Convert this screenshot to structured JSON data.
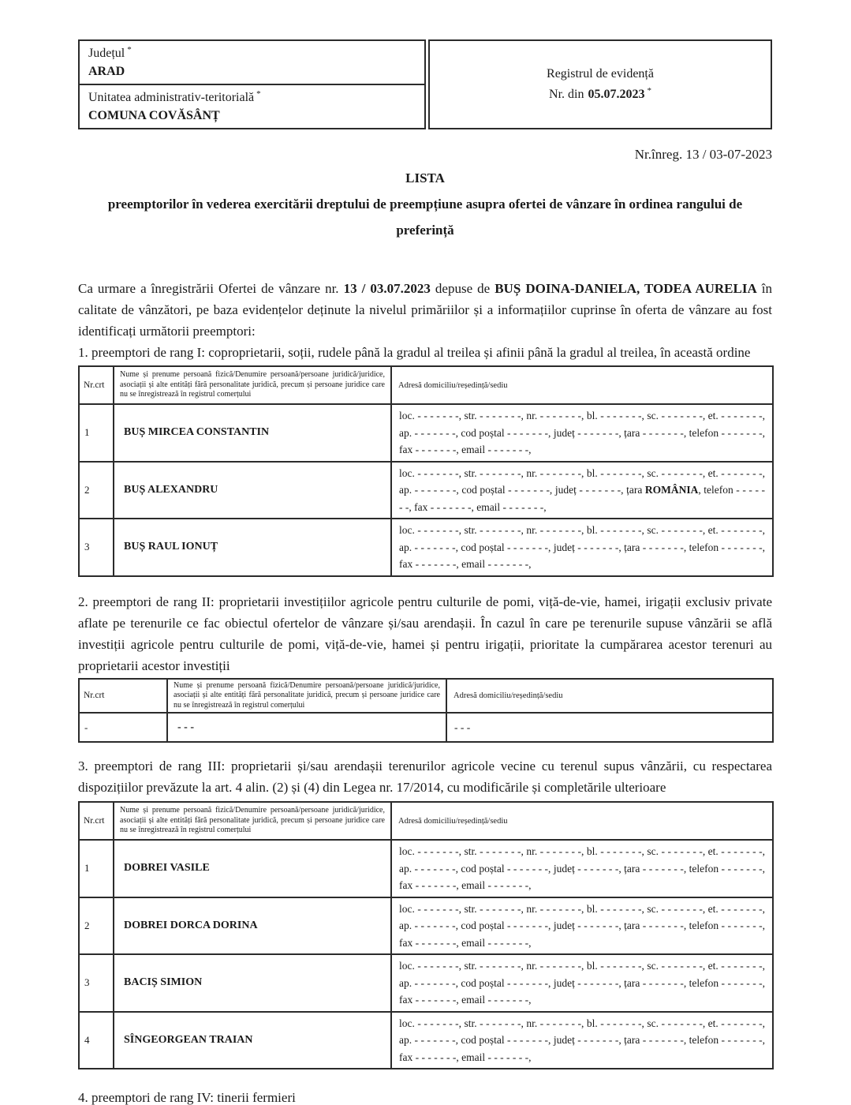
{
  "header": {
    "judet_label": "Județul",
    "judet_value": "ARAD",
    "uat_label": "Unitatea administrativ-teritorială",
    "uat_value": "COMUNA COVĂSÂNȚ",
    "asterisk": "*",
    "registry_title": "Registrul de evidență",
    "registry_nr_label": "Nr. din",
    "registry_nr_value": "05.07.2023"
  },
  "registration_line": "Nr.înreg. 13 / 03-07-2023",
  "title": {
    "main": "LISTA",
    "subtitle": "preemptorilor în vederea exercitării dreptului de preempțiune asupra ofertei de vânzare în ordinea rangului de preferință"
  },
  "intro_paragraph": [
    {
      "t": "Ca urmare a înregistrării Ofertei de vânzare nr. "
    },
    {
      "t": "13 / 03.07.2023",
      "b": true
    },
    {
      "t": " depuse de "
    },
    {
      "t": "BUȘ DOINA-DANIELA, TODEA AURELIA",
      "b": true
    },
    {
      "t": " în calitate de vânzători, pe baza evidențelor deținute la nivelul primăriilor și a informațiilor cuprinse în oferta de vânzare au fost identificați următorii preemptori:"
    }
  ],
  "tables": [
    {
      "intro": "1. preemptori de rang I: coproprietarii, soții, rudele până la gradul al treilea și afinii până la gradul al treilea, în această ordine",
      "columns": [
        "Nr.crt",
        "Nume și prenume persoană fizică/Denumire persoană/persoane juridică/juridice, asociații și alte entități fără personalitate juridică, precum și persoane juridice care nu se înregistrează în registrul comerțului",
        "Adresă domiciliu/reședință/sediu"
      ],
      "rows": [
        {
          "nr": "1",
          "name": "BUȘ MIRCEA CONSTANTIN",
          "address": [
            {
              "t": "loc. - - - - - - -, str. - - - - - - -, nr. - - - - - - -, bl. - - - - - - -, sc. - - - - - - -, et. - - - - - - -, ap. - - - - - - -, cod poștal - - - - - - -, județ - - - - - - -, țara - - - - - - -, telefon - - - - - - -, fax - - - - - - -, email - - - - - - -,"
            }
          ]
        },
        {
          "nr": "2",
          "name": "BUȘ ALEXANDRU",
          "address": [
            {
              "t": "loc. - - - - - - -, str. - - - - - - -, nr. - - - - - - -, bl. - - - - - - -, sc. - - - - - - -, et. - - - - - - -, ap. - - - - - - -, cod poștal - - - - - - -, județ - - - - - - -, țara "
            },
            {
              "t": "ROMÂNIA",
              "b": true
            },
            {
              "t": ", telefon - - - - - - -, fax - - - - - - -, email - - - - - - -,"
            }
          ]
        },
        {
          "nr": "3",
          "name": "BUȘ RAUL IONUȚ",
          "address": [
            {
              "t": "loc. - - - - - - -, str. - - - - - - -, nr. - - - - - - -, bl. - - - - - - -, sc. - - - - - - -, et. - - - - - - -, ap. - - - - - - -, cod poștal - - - - - - -, județ - - - - - - -, țara - - - - - - -, telefon - - - - - - -, fax - - - - - - -, email - - - - - - -,"
            }
          ]
        }
      ]
    },
    {
      "intro": "2. preemptori de rang II: proprietarii investițiilor agricole pentru culturile de pomi, viță-de-vie, hamei, irigații exclusiv private aflate pe terenurile ce fac obiectul ofertelor de vânzare și/sau arendașii. În cazul în care pe terenurile supuse vânzării se află investiții agricole pentru culturile de pomi, viță-de-vie, hamei și pentru irigații, prioritate la cumpărarea acestor terenuri au proprietarii acestor investiții",
      "columns": [
        "Nr.crt",
        "Nume și prenume persoană fizică/Denumire persoană/persoane juridică/juridice, asociații și alte entități fără personalitate juridică, precum și persoane juridice care nu se înregistrează în registrul comerțului",
        "Adresă domiciliu/reședință/sediu"
      ],
      "rows": [
        {
          "nr": "-",
          "name": "- - -",
          "address": [
            {
              "t": "- - -"
            }
          ]
        }
      ]
    },
    {
      "intro": "3. preemptori de rang III: proprietarii și/sau arendașii terenurilor agricole vecine cu terenul supus vânzării, cu respectarea dispozițiilor prevăzute la art. 4 alin. (2) și (4) din Legea nr. 17/2014, cu modificările și completările ulterioare",
      "columns": [
        "Nr.crt",
        "Nume și prenume persoană fizică/Denumire persoană/persoane juridică/juridice, asociații și alte entități fără personalitate juridică, precum și persoane juridice care nu se înregistrează în registrul comerțului",
        "Adresă domiciliu/reședință/sediu"
      ],
      "rows": [
        {
          "nr": "1",
          "name": "DOBREI VASILE",
          "address": [
            {
              "t": "loc. - - - - - - -, str. - - - - - - -, nr. - - - - - - -, bl. - - - - - - -, sc. - - - - - - -, et. - - - - - - -, ap. - - - - - - -, cod poștal - - - - - - -, județ - - - - - - -, țara - - - - - - -, telefon - - - - - - -, fax - - - - - - -, email - - - - - - -,"
            }
          ]
        },
        {
          "nr": "2",
          "name": "DOBREI DORCA DORINA",
          "address": [
            {
              "t": "loc. - - - - - - -, str. - - - - - - -, nr. - - - - - - -, bl. - - - - - - -, sc. - - - - - - -, et. - - - - - - -, ap. - - - - - - -, cod poștal - - - - - - -, județ - - - - - - -, țara - - - - - - -, telefon - - - - - - -, fax - - - - - - -, email - - - - - - -,"
            }
          ]
        },
        {
          "nr": "3",
          "name": "BACIȘ SIMION",
          "address": [
            {
              "t": "loc. - - - - - - -, str. - - - - - - -, nr. - - - - - - -, bl. - - - - - - -, sc. - - - - - - -, et. - - - - - - -, ap. - - - - - - -, cod poștal - - - - - - -, județ - - - - - - -, țara - - - - - - -, telefon - - - - - - -, fax - - - - - - -, email - - - - - - -,"
            }
          ]
        },
        {
          "nr": "4",
          "name": "SÎNGEORGEAN TRAIAN",
          "address": [
            {
              "t": "loc. - - - - - - -, str. - - - - - - -, nr. - - - - - - -, bl. - - - - - - -, sc. - - - - - - -, et. - - - - - - -, ap. - - - - - - -, cod poștal - - - - - - -, județ - - - - - - -, țara - - - - - - -, telefon - - - - - - -, fax - - - - - - -, email - - - - - - -,"
            }
          ]
        }
      ]
    }
  ],
  "rank4_line": "4. preemptori de rang IV: tinerii fermieri",
  "colors": {
    "text": "#1a1a1a",
    "border": "#2b2b2b",
    "background": "#ffffff"
  }
}
